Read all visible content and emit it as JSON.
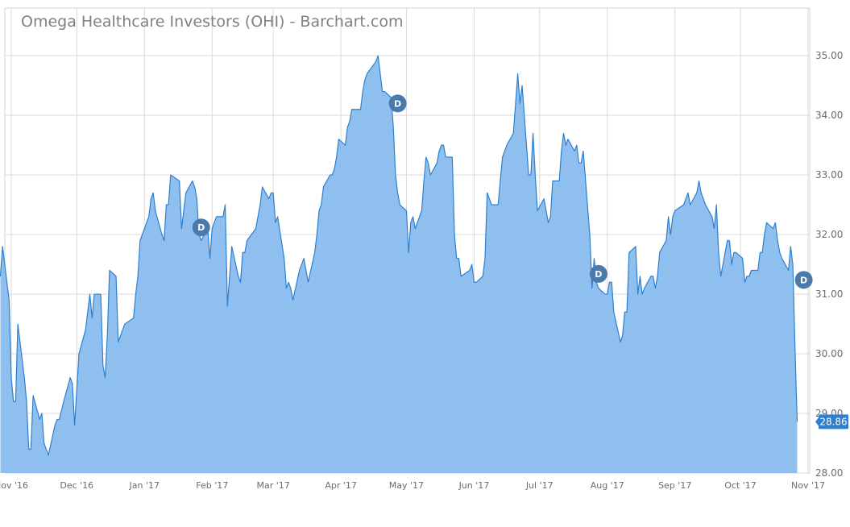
{
  "chart_data": {
    "type": "area",
    "title": "Omega Healthcare Investors (OHI) - Barchart.com",
    "xlabel": "",
    "ylabel": "",
    "ylim": [
      28,
      35.8
    ],
    "y_ticks": [
      "28.00",
      "29.00",
      "30.00",
      "31.00",
      "32.00",
      "33.00",
      "34.00",
      "35.00"
    ],
    "x_ticks": [
      "Nov '16",
      "Dec '16",
      "Jan '17",
      "Feb '17",
      "Mar '17",
      "Apr '17",
      "May '17",
      "Jun '17",
      "Jul '17",
      "Aug '17",
      "Sep '17",
      "Oct '17",
      "Nov '17"
    ],
    "grid": true,
    "legend": "none",
    "colors": {
      "fill": "#8fbfee",
      "line": "#2e7fd0",
      "dividend_marker": "#4a7aab",
      "last_price_bg": "#2e7fd0"
    },
    "last_price": "28.86",
    "dividend_label": "D",
    "dividends": [
      {
        "date": "2017-01-27",
        "y": 32.12
      },
      {
        "date": "2017-04-27",
        "y": 34.2
      },
      {
        "date": "2017-07-28",
        "y": 31.34
      },
      {
        "date": "2017-10-30",
        "y": 31.24
      }
    ],
    "series": [
      {
        "values": [
          [
            "2016-10-27",
            31.3
          ],
          [
            "2016-10-28",
            31.8
          ],
          [
            "2016-10-31",
            30.9
          ],
          [
            "2016-11-01",
            29.6
          ],
          [
            "2016-11-02",
            29.2
          ],
          [
            "2016-11-03",
            29.2
          ],
          [
            "2016-11-04",
            30.5
          ],
          [
            "2016-11-07",
            29.6
          ],
          [
            "2016-11-08",
            29.2
          ],
          [
            "2016-11-09",
            28.4
          ],
          [
            "2016-11-10",
            28.4
          ],
          [
            "2016-11-11",
            29.3
          ],
          [
            "2016-11-14",
            28.9
          ],
          [
            "2016-11-15",
            29.0
          ],
          [
            "2016-11-16",
            28.5
          ],
          [
            "2016-11-17",
            28.4
          ],
          [
            "2016-11-18",
            28.3
          ],
          [
            "2016-11-21",
            28.8
          ],
          [
            "2016-11-22",
            28.9
          ],
          [
            "2016-11-23",
            28.9
          ],
          [
            "2016-11-25",
            29.2
          ],
          [
            "2016-11-28",
            29.6
          ],
          [
            "2016-11-29",
            29.5
          ],
          [
            "2016-11-30",
            28.8
          ],
          [
            "2016-12-01",
            29.4
          ],
          [
            "2016-12-02",
            30.0
          ],
          [
            "2016-12-05",
            30.4
          ],
          [
            "2016-12-06",
            30.7
          ],
          [
            "2016-12-07",
            31.0
          ],
          [
            "2016-12-08",
            30.6
          ],
          [
            "2016-12-09",
            31.0
          ],
          [
            "2016-12-12",
            31.0
          ],
          [
            "2016-12-13",
            29.8
          ],
          [
            "2016-12-14",
            29.6
          ],
          [
            "2016-12-15",
            30.3
          ],
          [
            "2016-12-16",
            31.4
          ],
          [
            "2016-12-19",
            31.3
          ],
          [
            "2016-12-20",
            30.2
          ],
          [
            "2016-12-21",
            30.3
          ],
          [
            "2016-12-22",
            30.4
          ],
          [
            "2016-12-23",
            30.5
          ],
          [
            "2016-12-27",
            30.6
          ],
          [
            "2016-12-28",
            31.0
          ],
          [
            "2016-12-29",
            31.3
          ],
          [
            "2016-12-30",
            31.9
          ],
          [
            "2017-01-03",
            32.3
          ],
          [
            "2017-01-04",
            32.6
          ],
          [
            "2017-01-05",
            32.7
          ],
          [
            "2017-01-06",
            32.4
          ],
          [
            "2017-01-09",
            32.0
          ],
          [
            "2017-01-10",
            31.9
          ],
          [
            "2017-01-11",
            32.5
          ],
          [
            "2017-01-12",
            32.5
          ],
          [
            "2017-01-13",
            33.0
          ],
          [
            "2017-01-17",
            32.9
          ],
          [
            "2017-01-18",
            32.1
          ],
          [
            "2017-01-19",
            32.4
          ],
          [
            "2017-01-20",
            32.7
          ],
          [
            "2017-01-23",
            32.9
          ],
          [
            "2017-01-24",
            32.8
          ],
          [
            "2017-01-25",
            32.6
          ],
          [
            "2017-01-26",
            32.0
          ],
          [
            "2017-01-27",
            31.9
          ],
          [
            "2017-01-30",
            32.1
          ],
          [
            "2017-01-31",
            31.6
          ],
          [
            "2017-02-01",
            32.1
          ],
          [
            "2017-02-02",
            32.2
          ],
          [
            "2017-02-03",
            32.3
          ],
          [
            "2017-02-06",
            32.3
          ],
          [
            "2017-02-07",
            32.5
          ],
          [
            "2017-02-08",
            30.8
          ],
          [
            "2017-02-09",
            31.3
          ],
          [
            "2017-02-10",
            31.8
          ],
          [
            "2017-02-13",
            31.3
          ],
          [
            "2017-02-14",
            31.2
          ],
          [
            "2017-02-15",
            31.7
          ],
          [
            "2017-02-16",
            31.7
          ],
          [
            "2017-02-17",
            31.9
          ],
          [
            "2017-02-21",
            32.1
          ],
          [
            "2017-02-22",
            32.3
          ],
          [
            "2017-02-23",
            32.5
          ],
          [
            "2017-02-24",
            32.8
          ],
          [
            "2017-02-27",
            32.6
          ],
          [
            "2017-02-28",
            32.7
          ],
          [
            "2017-03-01",
            32.7
          ],
          [
            "2017-03-02",
            32.2
          ],
          [
            "2017-03-03",
            32.3
          ],
          [
            "2017-03-06",
            31.6
          ],
          [
            "2017-03-07",
            31.1
          ],
          [
            "2017-03-08",
            31.2
          ],
          [
            "2017-03-09",
            31.1
          ],
          [
            "2017-03-10",
            30.9
          ],
          [
            "2017-03-13",
            31.4
          ],
          [
            "2017-03-14",
            31.5
          ],
          [
            "2017-03-15",
            31.6
          ],
          [
            "2017-03-16",
            31.4
          ],
          [
            "2017-03-17",
            31.2
          ],
          [
            "2017-03-20",
            31.7
          ],
          [
            "2017-03-21",
            32.0
          ],
          [
            "2017-03-22",
            32.4
          ],
          [
            "2017-03-23",
            32.5
          ],
          [
            "2017-03-24",
            32.8
          ],
          [
            "2017-03-27",
            33.0
          ],
          [
            "2017-03-28",
            33.0
          ],
          [
            "2017-03-29",
            33.1
          ],
          [
            "2017-03-30",
            33.3
          ],
          [
            "2017-03-31",
            33.6
          ],
          [
            "2017-04-03",
            33.5
          ],
          [
            "2017-04-04",
            33.8
          ],
          [
            "2017-04-05",
            33.9
          ],
          [
            "2017-04-06",
            34.1
          ],
          [
            "2017-04-07",
            34.1
          ],
          [
            "2017-04-10",
            34.1
          ],
          [
            "2017-04-11",
            34.4
          ],
          [
            "2017-04-12",
            34.6
          ],
          [
            "2017-04-13",
            34.7
          ],
          [
            "2017-04-17",
            34.9
          ],
          [
            "2017-04-18",
            35.0
          ],
          [
            "2017-04-19",
            34.7
          ],
          [
            "2017-04-20",
            34.4
          ],
          [
            "2017-04-21",
            34.4
          ],
          [
            "2017-04-24",
            34.3
          ],
          [
            "2017-04-25",
            33.8
          ],
          [
            "2017-04-26",
            33.0
          ],
          [
            "2017-04-27",
            32.7
          ],
          [
            "2017-04-28",
            32.5
          ],
          [
            "2017-05-01",
            32.4
          ],
          [
            "2017-05-02",
            31.7
          ],
          [
            "2017-05-03",
            32.2
          ],
          [
            "2017-05-04",
            32.3
          ],
          [
            "2017-05-05",
            32.1
          ],
          [
            "2017-05-08",
            32.4
          ],
          [
            "2017-05-09",
            32.9
          ],
          [
            "2017-05-10",
            33.3
          ],
          [
            "2017-05-11",
            33.2
          ],
          [
            "2017-05-12",
            33.0
          ],
          [
            "2017-05-15",
            33.2
          ],
          [
            "2017-05-16",
            33.4
          ],
          [
            "2017-05-17",
            33.5
          ],
          [
            "2017-05-18",
            33.5
          ],
          [
            "2017-05-19",
            33.3
          ],
          [
            "2017-05-22",
            33.3
          ],
          [
            "2017-05-23",
            32.0
          ],
          [
            "2017-05-24",
            31.6
          ],
          [
            "2017-05-25",
            31.6
          ],
          [
            "2017-05-26",
            31.3
          ],
          [
            "2017-05-30",
            31.4
          ],
          [
            "2017-05-31",
            31.5
          ],
          [
            "2017-06-01",
            31.2
          ],
          [
            "2017-06-02",
            31.2
          ],
          [
            "2017-06-05",
            31.3
          ],
          [
            "2017-06-06",
            31.6
          ],
          [
            "2017-06-07",
            32.7
          ],
          [
            "2017-06-08",
            32.6
          ],
          [
            "2017-06-09",
            32.5
          ],
          [
            "2017-06-12",
            32.5
          ],
          [
            "2017-06-13",
            32.9
          ],
          [
            "2017-06-14",
            33.3
          ],
          [
            "2017-06-15",
            33.4
          ],
          [
            "2017-06-16",
            33.5
          ],
          [
            "2017-06-19",
            33.7
          ],
          [
            "2017-06-20",
            34.2
          ],
          [
            "2017-06-21",
            34.7
          ],
          [
            "2017-06-22",
            34.2
          ],
          [
            "2017-06-23",
            34.5
          ],
          [
            "2017-06-26",
            33.0
          ],
          [
            "2017-06-27",
            33.0
          ],
          [
            "2017-06-28",
            33.7
          ],
          [
            "2017-06-29",
            33.0
          ],
          [
            "2017-06-30",
            32.4
          ],
          [
            "2017-07-03",
            32.6
          ],
          [
            "2017-07-05",
            32.2
          ],
          [
            "2017-07-06",
            32.3
          ],
          [
            "2017-07-07",
            32.9
          ],
          [
            "2017-07-10",
            32.9
          ],
          [
            "2017-07-11",
            33.4
          ],
          [
            "2017-07-12",
            33.7
          ],
          [
            "2017-07-13",
            33.5
          ],
          [
            "2017-07-14",
            33.6
          ],
          [
            "2017-07-17",
            33.4
          ],
          [
            "2017-07-18",
            33.5
          ],
          [
            "2017-07-19",
            33.2
          ],
          [
            "2017-07-20",
            33.2
          ],
          [
            "2017-07-21",
            33.4
          ],
          [
            "2017-07-24",
            32.0
          ],
          [
            "2017-07-25",
            31.1
          ],
          [
            "2017-07-26",
            31.6
          ],
          [
            "2017-07-27",
            31.2
          ],
          [
            "2017-07-28",
            31.1
          ],
          [
            "2017-07-31",
            31.0
          ],
          [
            "2017-08-01",
            31.0
          ],
          [
            "2017-08-02",
            31.2
          ],
          [
            "2017-08-03",
            31.2
          ],
          [
            "2017-08-04",
            30.7
          ],
          [
            "2017-08-07",
            30.2
          ],
          [
            "2017-08-08",
            30.3
          ],
          [
            "2017-08-09",
            30.7
          ],
          [
            "2017-08-10",
            30.7
          ],
          [
            "2017-08-11",
            31.7
          ],
          [
            "2017-08-14",
            31.8
          ],
          [
            "2017-08-15",
            31.0
          ],
          [
            "2017-08-16",
            31.3
          ],
          [
            "2017-08-17",
            31.0
          ],
          [
            "2017-08-18",
            31.1
          ],
          [
            "2017-08-21",
            31.3
          ],
          [
            "2017-08-22",
            31.3
          ],
          [
            "2017-08-23",
            31.1
          ],
          [
            "2017-08-24",
            31.3
          ],
          [
            "2017-08-25",
            31.7
          ],
          [
            "2017-08-28",
            31.9
          ],
          [
            "2017-08-29",
            32.3
          ],
          [
            "2017-08-30",
            32.0
          ],
          [
            "2017-08-31",
            32.3
          ],
          [
            "2017-09-01",
            32.4
          ],
          [
            "2017-09-05",
            32.5
          ],
          [
            "2017-09-06",
            32.6
          ],
          [
            "2017-09-07",
            32.7
          ],
          [
            "2017-09-08",
            32.5
          ],
          [
            "2017-09-11",
            32.7
          ],
          [
            "2017-09-12",
            32.9
          ],
          [
            "2017-09-13",
            32.7
          ],
          [
            "2017-09-14",
            32.6
          ],
          [
            "2017-09-15",
            32.5
          ],
          [
            "2017-09-18",
            32.3
          ],
          [
            "2017-09-19",
            32.1
          ],
          [
            "2017-09-20",
            32.5
          ],
          [
            "2017-09-21",
            31.7
          ],
          [
            "2017-09-22",
            31.3
          ],
          [
            "2017-09-25",
            31.9
          ],
          [
            "2017-09-26",
            31.9
          ],
          [
            "2017-09-27",
            31.5
          ],
          [
            "2017-09-28",
            31.7
          ],
          [
            "2017-09-29",
            31.7
          ],
          [
            "2017-10-02",
            31.6
          ],
          [
            "2017-10-03",
            31.2
          ],
          [
            "2017-10-04",
            31.3
          ],
          [
            "2017-10-05",
            31.3
          ],
          [
            "2017-10-06",
            31.4
          ],
          [
            "2017-10-09",
            31.4
          ],
          [
            "2017-10-10",
            31.7
          ],
          [
            "2017-10-11",
            31.7
          ],
          [
            "2017-10-12",
            32.0
          ],
          [
            "2017-10-13",
            32.2
          ],
          [
            "2017-10-16",
            32.1
          ],
          [
            "2017-10-17",
            32.2
          ],
          [
            "2017-10-18",
            31.9
          ],
          [
            "2017-10-19",
            31.7
          ],
          [
            "2017-10-20",
            31.6
          ],
          [
            "2017-10-23",
            31.4
          ],
          [
            "2017-10-24",
            31.8
          ],
          [
            "2017-10-25",
            31.5
          ],
          [
            "2017-10-26",
            30.1
          ],
          [
            "2017-10-27",
            28.86
          ]
        ]
      }
    ]
  }
}
